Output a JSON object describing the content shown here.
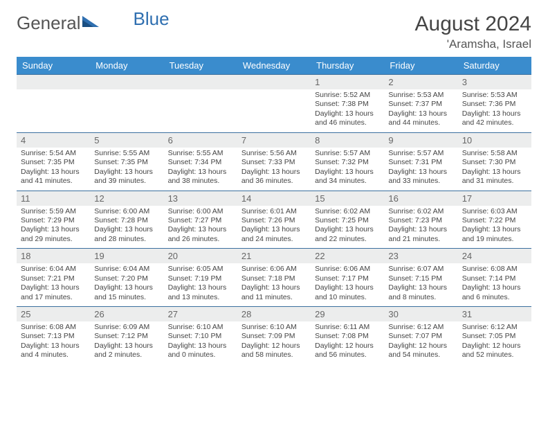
{
  "brand": {
    "part1": "General",
    "part2": "Blue"
  },
  "title": "August 2024",
  "location": "'Aramsha, Israel",
  "colors": {
    "header_bg": "#3a8ccd",
    "row_border": "#3a6f9e",
    "daynum_bg": "#eceded",
    "logo_blue": "#2f6fb0",
    "text": "#444444"
  },
  "weekdays": [
    "Sunday",
    "Monday",
    "Tuesday",
    "Wednesday",
    "Thursday",
    "Friday",
    "Saturday"
  ],
  "typography": {
    "title_fontsize": 30,
    "location_fontsize": 17,
    "weekday_fontsize": 13,
    "daynum_fontsize": 13,
    "body_fontsize": 10.5
  },
  "weeks": [
    [
      {
        "blank": true
      },
      {
        "blank": true
      },
      {
        "blank": true
      },
      {
        "blank": true
      },
      {
        "day": 1,
        "sunrise": "5:52 AM",
        "sunset": "7:38 PM",
        "dh": 13,
        "dm": 46
      },
      {
        "day": 2,
        "sunrise": "5:53 AM",
        "sunset": "7:37 PM",
        "dh": 13,
        "dm": 44
      },
      {
        "day": 3,
        "sunrise": "5:53 AM",
        "sunset": "7:36 PM",
        "dh": 13,
        "dm": 42
      }
    ],
    [
      {
        "day": 4,
        "sunrise": "5:54 AM",
        "sunset": "7:35 PM",
        "dh": 13,
        "dm": 41
      },
      {
        "day": 5,
        "sunrise": "5:55 AM",
        "sunset": "7:35 PM",
        "dh": 13,
        "dm": 39
      },
      {
        "day": 6,
        "sunrise": "5:55 AM",
        "sunset": "7:34 PM",
        "dh": 13,
        "dm": 38
      },
      {
        "day": 7,
        "sunrise": "5:56 AM",
        "sunset": "7:33 PM",
        "dh": 13,
        "dm": 36
      },
      {
        "day": 8,
        "sunrise": "5:57 AM",
        "sunset": "7:32 PM",
        "dh": 13,
        "dm": 34
      },
      {
        "day": 9,
        "sunrise": "5:57 AM",
        "sunset": "7:31 PM",
        "dh": 13,
        "dm": 33
      },
      {
        "day": 10,
        "sunrise": "5:58 AM",
        "sunset": "7:30 PM",
        "dh": 13,
        "dm": 31
      }
    ],
    [
      {
        "day": 11,
        "sunrise": "5:59 AM",
        "sunset": "7:29 PM",
        "dh": 13,
        "dm": 29
      },
      {
        "day": 12,
        "sunrise": "6:00 AM",
        "sunset": "7:28 PM",
        "dh": 13,
        "dm": 28
      },
      {
        "day": 13,
        "sunrise": "6:00 AM",
        "sunset": "7:27 PM",
        "dh": 13,
        "dm": 26
      },
      {
        "day": 14,
        "sunrise": "6:01 AM",
        "sunset": "7:26 PM",
        "dh": 13,
        "dm": 24
      },
      {
        "day": 15,
        "sunrise": "6:02 AM",
        "sunset": "7:25 PM",
        "dh": 13,
        "dm": 22
      },
      {
        "day": 16,
        "sunrise": "6:02 AM",
        "sunset": "7:23 PM",
        "dh": 13,
        "dm": 21
      },
      {
        "day": 17,
        "sunrise": "6:03 AM",
        "sunset": "7:22 PM",
        "dh": 13,
        "dm": 19
      }
    ],
    [
      {
        "day": 18,
        "sunrise": "6:04 AM",
        "sunset": "7:21 PM",
        "dh": 13,
        "dm": 17
      },
      {
        "day": 19,
        "sunrise": "6:04 AM",
        "sunset": "7:20 PM",
        "dh": 13,
        "dm": 15
      },
      {
        "day": 20,
        "sunrise": "6:05 AM",
        "sunset": "7:19 PM",
        "dh": 13,
        "dm": 13
      },
      {
        "day": 21,
        "sunrise": "6:06 AM",
        "sunset": "7:18 PM",
        "dh": 13,
        "dm": 11
      },
      {
        "day": 22,
        "sunrise": "6:06 AM",
        "sunset": "7:17 PM",
        "dh": 13,
        "dm": 10
      },
      {
        "day": 23,
        "sunrise": "6:07 AM",
        "sunset": "7:15 PM",
        "dh": 13,
        "dm": 8
      },
      {
        "day": 24,
        "sunrise": "6:08 AM",
        "sunset": "7:14 PM",
        "dh": 13,
        "dm": 6
      }
    ],
    [
      {
        "day": 25,
        "sunrise": "6:08 AM",
        "sunset": "7:13 PM",
        "dh": 13,
        "dm": 4
      },
      {
        "day": 26,
        "sunrise": "6:09 AM",
        "sunset": "7:12 PM",
        "dh": 13,
        "dm": 2
      },
      {
        "day": 27,
        "sunrise": "6:10 AM",
        "sunset": "7:10 PM",
        "dh": 13,
        "dm": 0
      },
      {
        "day": 28,
        "sunrise": "6:10 AM",
        "sunset": "7:09 PM",
        "dh": 12,
        "dm": 58
      },
      {
        "day": 29,
        "sunrise": "6:11 AM",
        "sunset": "7:08 PM",
        "dh": 12,
        "dm": 56
      },
      {
        "day": 30,
        "sunrise": "6:12 AM",
        "sunset": "7:07 PM",
        "dh": 12,
        "dm": 54
      },
      {
        "day": 31,
        "sunrise": "6:12 AM",
        "sunset": "7:05 PM",
        "dh": 12,
        "dm": 52
      }
    ]
  ],
  "labels": {
    "sunrise": "Sunrise:",
    "sunset": "Sunset:",
    "daylight_prefix": "Daylight:",
    "hours_word": "hours",
    "and_word": "and",
    "minutes_word": "minutes."
  }
}
